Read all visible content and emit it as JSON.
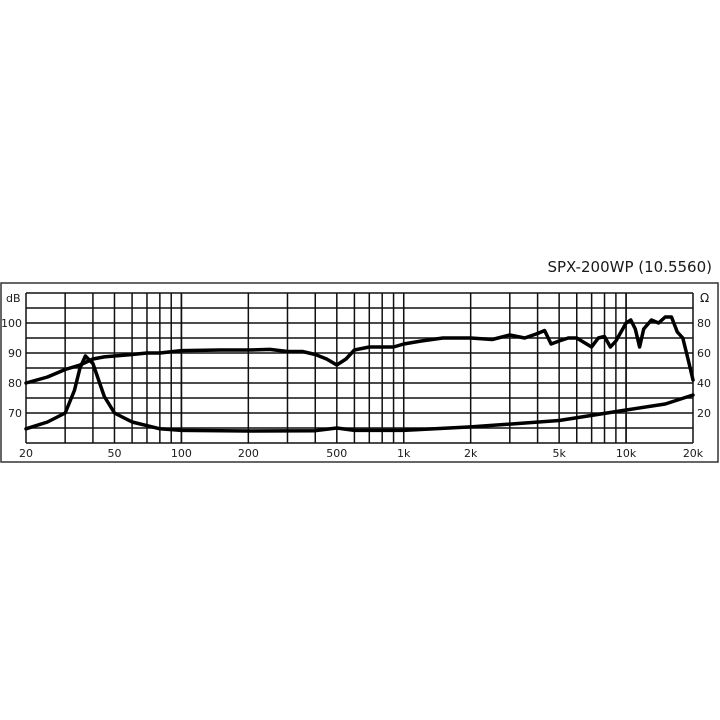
{
  "chart_data": {
    "type": "line",
    "title": "SPX-200WP (10.5560)",
    "x_scale": "log",
    "xlim": [
      20,
      20000
    ],
    "x_ticks": [
      20,
      50,
      100,
      200,
      500,
      1000,
      2000,
      5000,
      10000,
      20000
    ],
    "x_tick_labels": [
      "20",
      "50",
      "100",
      "200",
      "500",
      "1k",
      "2k",
      "5k",
      "10k",
      "20k"
    ],
    "y_left": {
      "label": "dB",
      "ylim": [
        60,
        110
      ],
      "ticks": [
        70,
        80,
        90,
        100
      ],
      "tick_labels": [
        "70",
        "80",
        "90",
        "100"
      ]
    },
    "y_right": {
      "label": "Ω",
      "ylim": [
        0,
        100
      ],
      "ticks": [
        20,
        40,
        60,
        80
      ],
      "tick_labels": [
        "20",
        "40",
        "60",
        "80"
      ]
    },
    "grid": true,
    "series": [
      {
        "axis": "left",
        "points": [
          [
            20,
            80
          ],
          [
            25,
            82
          ],
          [
            30,
            84.5
          ],
          [
            35,
            86
          ],
          [
            40,
            88
          ],
          [
            45,
            88.7
          ],
          [
            50,
            89
          ],
          [
            60,
            89.5
          ],
          [
            70,
            90
          ],
          [
            80,
            90
          ],
          [
            100,
            90.8
          ],
          [
            150,
            91
          ],
          [
            200,
            91
          ],
          [
            250,
            91.2
          ],
          [
            300,
            90.5
          ],
          [
            350,
            90.5
          ],
          [
            400,
            89.5
          ],
          [
            450,
            88
          ],
          [
            500,
            86
          ],
          [
            550,
            88
          ],
          [
            600,
            91
          ],
          [
            700,
            92
          ],
          [
            800,
            92
          ],
          [
            900,
            92
          ],
          [
            1000,
            93
          ],
          [
            1200,
            94
          ],
          [
            1500,
            95
          ],
          [
            2000,
            95
          ],
          [
            2500,
            94.5
          ],
          [
            3000,
            96
          ],
          [
            3500,
            95
          ],
          [
            4000,
            96.5
          ],
          [
            4300,
            97.5
          ],
          [
            4600,
            93
          ],
          [
            5000,
            94
          ],
          [
            5500,
            95
          ],
          [
            6000,
            95
          ],
          [
            7000,
            92
          ],
          [
            7500,
            95
          ],
          [
            8000,
            95.5
          ],
          [
            8500,
            92
          ],
          [
            9000,
            94
          ],
          [
            10000,
            100
          ],
          [
            10500,
            101
          ],
          [
            11000,
            98
          ],
          [
            11500,
            92
          ],
          [
            12000,
            98
          ],
          [
            13000,
            101
          ],
          [
            14000,
            100
          ],
          [
            15000,
            102
          ],
          [
            16000,
            102
          ],
          [
            17000,
            97
          ],
          [
            18000,
            95
          ],
          [
            19000,
            88
          ],
          [
            20000,
            81
          ]
        ]
      },
      {
        "axis": "right",
        "points": [
          [
            20,
            9.5
          ],
          [
            25,
            14
          ],
          [
            30,
            20
          ],
          [
            33,
            35
          ],
          [
            35,
            50
          ],
          [
            37,
            58
          ],
          [
            40,
            53
          ],
          [
            45,
            31
          ],
          [
            50,
            20
          ],
          [
            60,
            14
          ],
          [
            80,
            9.5
          ],
          [
            100,
            8.4
          ],
          [
            200,
            8
          ],
          [
            400,
            8.2
          ],
          [
            500,
            10
          ],
          [
            600,
            8.4
          ],
          [
            1000,
            8.4
          ],
          [
            2000,
            10.7
          ],
          [
            5000,
            15
          ],
          [
            10000,
            22
          ],
          [
            15000,
            26
          ],
          [
            20000,
            32
          ]
        ]
      }
    ]
  }
}
